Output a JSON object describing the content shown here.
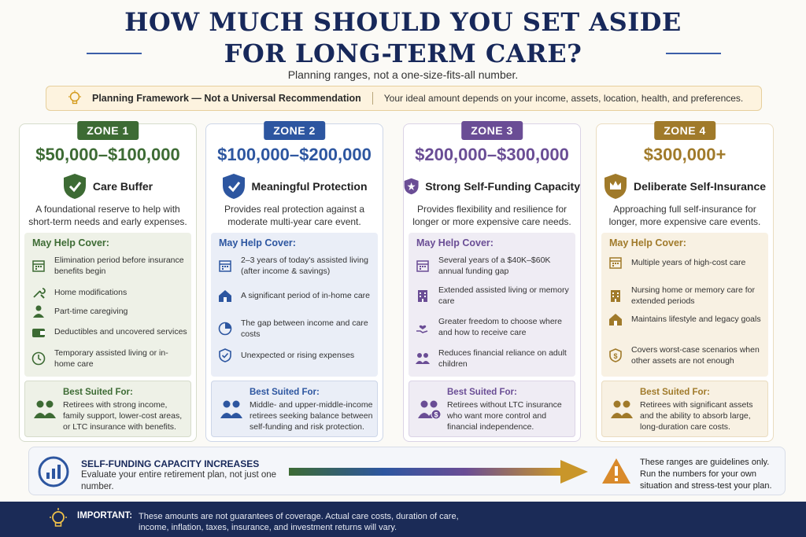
{
  "header": {
    "title_line1": "HOW MUCH SHOULD YOU SET ASIDE",
    "title_line2": "FOR LONG-TERM CARE?",
    "subtitle": "Planning ranges, not a one-size-fits-all number."
  },
  "banner": {
    "icon": "lightbulb-icon",
    "title": "Planning Framework — Not a Universal Recommendation",
    "text": "Your ideal amount depends on your income, assets, location, health, and preferences."
  },
  "zones": [
    {
      "tag": "ZONE 1",
      "amount": "$50,000–$100,000",
      "color": "#3d6b34",
      "icon": "shield-check-icon",
      "headline": "Care Buffer",
      "desc": "A foundational reserve to help with short-term needs and early expenses.",
      "cover_title": "May Help Cover:",
      "items": [
        {
          "icon": "calendar-icon",
          "text": "Elimination period before insurance benefits begin"
        },
        {
          "icon": "tools-icon",
          "text": "Home modifications"
        },
        {
          "icon": "person-icon",
          "text": "Part-time caregiving"
        },
        {
          "icon": "wallet-icon",
          "text": "Deductibles and uncovered services"
        },
        {
          "icon": "clock-icon",
          "text": "Temporary assisted living or in-home care"
        }
      ],
      "suited_title": "Best Suited For:",
      "suited_text": "Retirees with strong income, family support, lower-cost areas, or LTC insurance with benefits."
    },
    {
      "tag": "ZONE 2",
      "amount": "$100,000–$200,000",
      "color": "#2d56a0",
      "icon": "shield-check-icon",
      "headline": "Meaningful Protection",
      "desc": "Provides real protection against a moderate multi-year care event.",
      "cover_title": "May Help Cover:",
      "items": [
        {
          "icon": "calendar-icon",
          "text": "2–3 years of today's assisted living (after income & savings)"
        },
        {
          "icon": "house-icon",
          "text": "A significant period of in-home care"
        },
        {
          "icon": "pie-chart-icon",
          "text": "The gap between income and care costs"
        },
        {
          "icon": "shield-icon",
          "text": "Unexpected or rising expenses"
        }
      ],
      "suited_title": "Best Suited For:",
      "suited_text": "Middle- and upper-middle-income retirees seeking balance between self-funding and risk protection."
    },
    {
      "tag": "ZONE 3",
      "amount": "$200,000–$300,000",
      "color": "#6a4d95",
      "icon": "shield-star-icon",
      "headline": "Strong Self-Funding Capacity",
      "desc": "Provides flexibility and resilience for longer or more expensive care needs.",
      "cover_title": "May Help Cover:",
      "items": [
        {
          "icon": "calendar-icon",
          "text": "Several years of a $40K–$60K annual funding gap"
        },
        {
          "icon": "building-icon",
          "text": "Extended assisted living or memory care"
        },
        {
          "icon": "hand-heart-icon",
          "text": "Greater freedom to choose where and how to receive care"
        },
        {
          "icon": "people-icon",
          "text": "Reduces financial reliance on adult children"
        }
      ],
      "suited_title": "Best Suited For:",
      "suited_text": "Retirees without LTC insurance who want more control and financial independence."
    },
    {
      "tag": "ZONE 4",
      "amount": "$300,000+",
      "color": "#a07a2a",
      "icon": "shield-crown-icon",
      "headline": "Deliberate Self-Insurance",
      "desc": "Approaching full self-insurance for longer, more expensive care events.",
      "cover_title": "May Help Cover:",
      "items": [
        {
          "icon": "calendar-icon",
          "text": "Multiple years of high-cost care"
        },
        {
          "icon": "building-icon",
          "text": "Nursing home or memory care for extended periods"
        },
        {
          "icon": "house-icon",
          "text": "Maintains lifestyle and legacy goals"
        },
        {
          "icon": "shield-dollar-icon",
          "text": "Covers worst-case scenarios when other assets are not enough"
        }
      ],
      "suited_title": "Best Suited For:",
      "suited_text": "Retirees with significant assets and the ability to absorb large, long-duration care costs."
    }
  ],
  "capacity": {
    "icon": "bar-chart-icon",
    "title": "SELF-FUNDING CAPACITY INCREASES",
    "text": "Evaluate your entire retirement plan, not just one number."
  },
  "guideline": {
    "icon": "warning-icon",
    "text": "These ranges are guidelines only. Run the numbers for your own situation and stress-test your plan."
  },
  "footer": {
    "icon": "lightbulb-icon",
    "label": "IMPORTANT:",
    "text": "These amounts are not guarantees of coverage. Actual care costs, duration of care, income, inflation, taxes, insurance, and investment returns will vary."
  }
}
